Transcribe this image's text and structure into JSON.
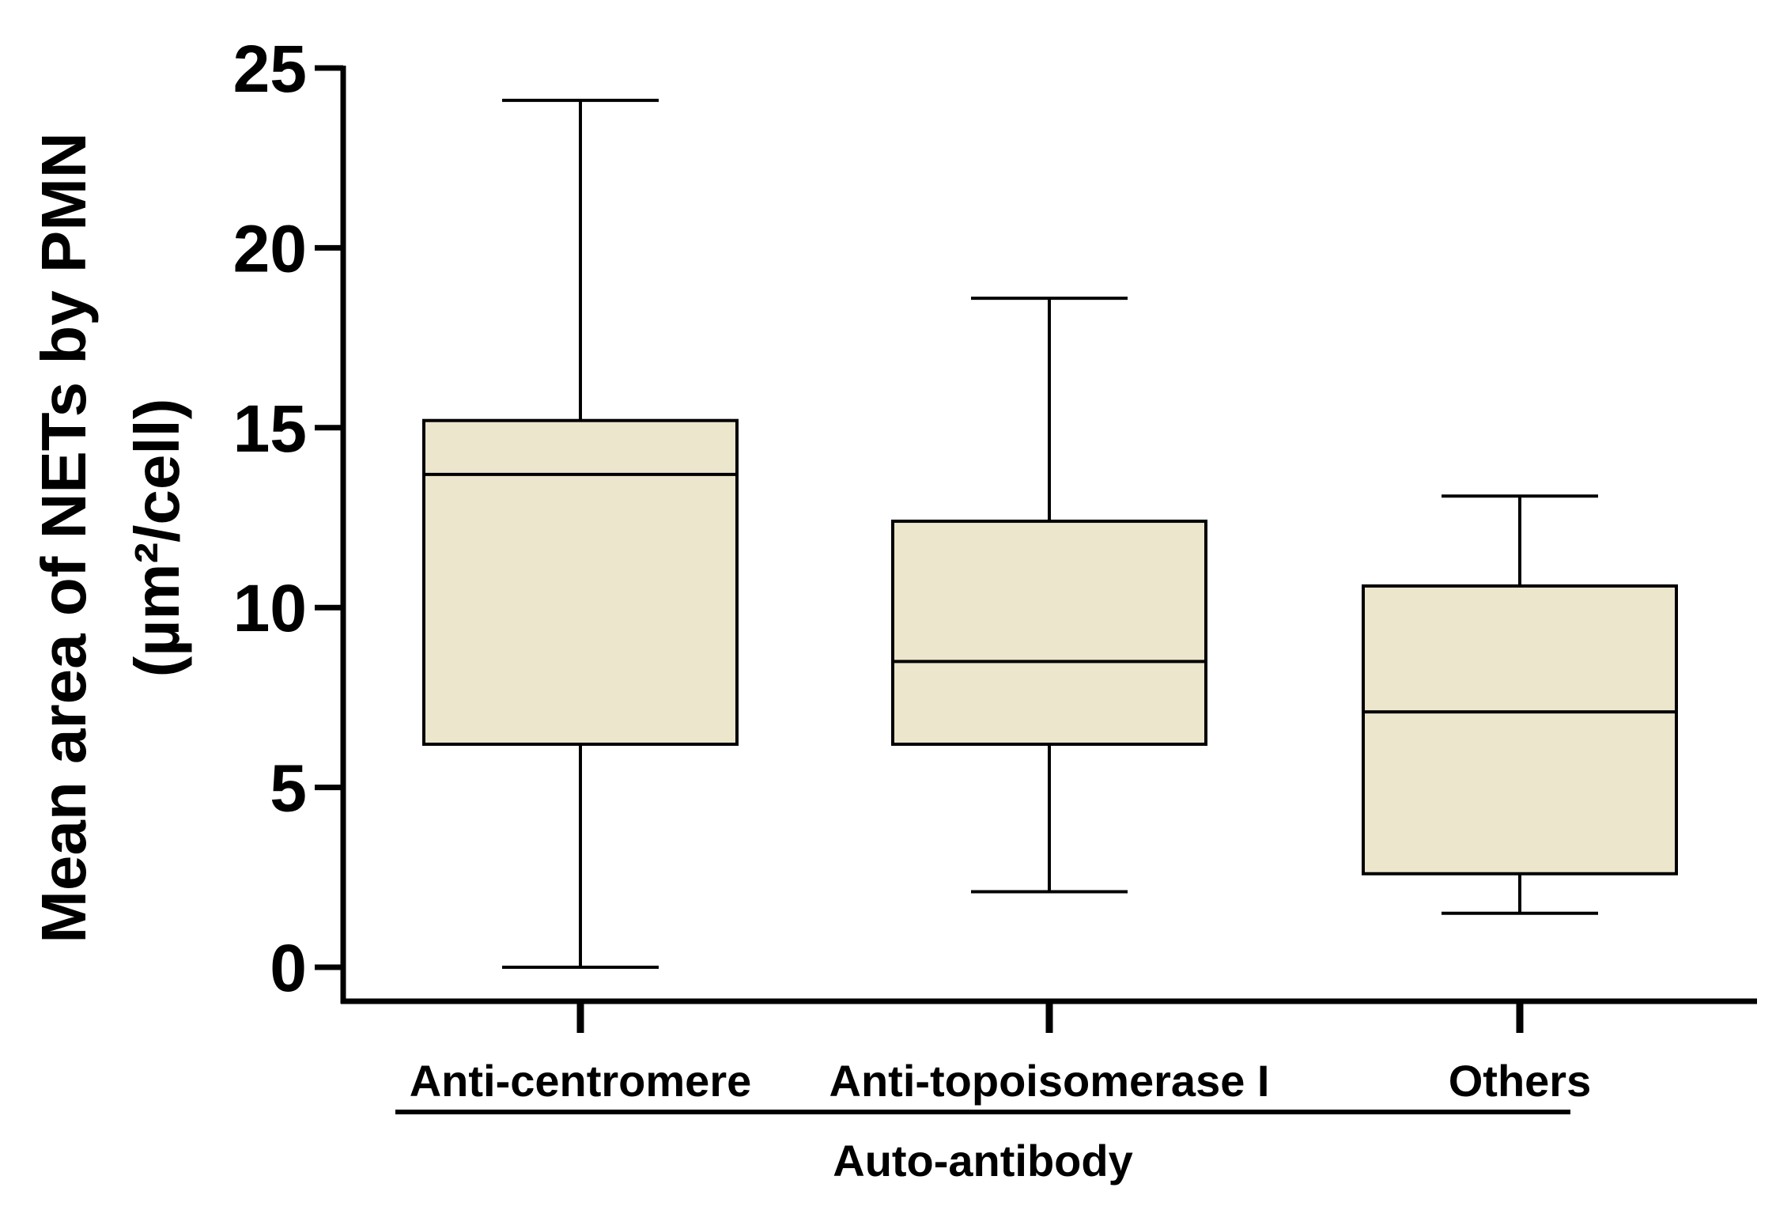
{
  "chart_data": {
    "type": "box",
    "title": "",
    "ylabel_line1": "Mean area of NETs by PMN",
    "ylabel_line2": "(µm²/cell)",
    "xlabel": "Auto-antibody",
    "ylim": [
      0,
      25
    ],
    "yticks": [
      0,
      5,
      10,
      15,
      20,
      25
    ],
    "categories": [
      "Anti-centromere",
      "Anti-topoisomerase I",
      "Others"
    ],
    "boxes": [
      {
        "category": "Anti-centromere",
        "min": 0.0,
        "q1": 6.2,
        "median": 13.7,
        "q3": 15.2,
        "max": 24.1
      },
      {
        "category": "Anti-topoisomerase I",
        "min": 2.1,
        "q1": 6.2,
        "median": 8.5,
        "q3": 12.4,
        "max": 18.6
      },
      {
        "category": "Others",
        "min": 1.5,
        "q1": 2.6,
        "median": 7.1,
        "q3": 10.6,
        "max": 13.1
      }
    ],
    "box_fill_color": "#ebe6cc",
    "line_color": "#000000",
    "grid": false,
    "legend": "none"
  }
}
